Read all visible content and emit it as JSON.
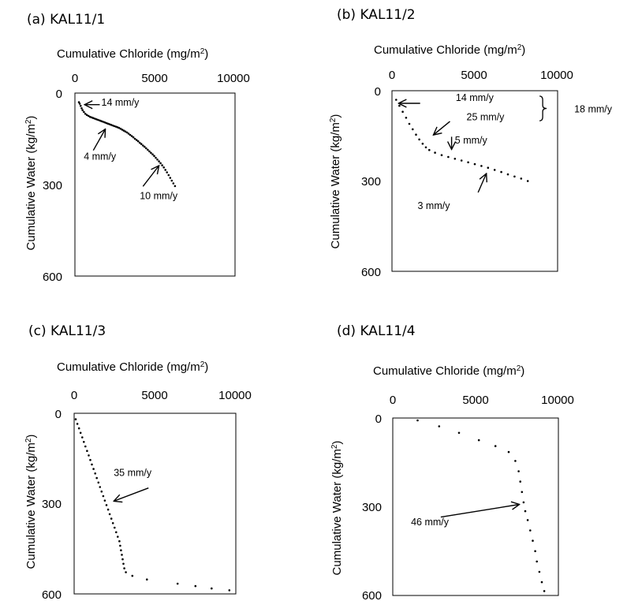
{
  "chart_data": [
    {
      "type": "scatter",
      "title": "(a) KAL11/1",
      "xlabel": "Cumulative Chloride (mg/m2)",
      "ylabel": "Cumulative Water (kg/m2)",
      "xlim": [
        0,
        10000
      ],
      "ylim": [
        0,
        600
      ],
      "y_inverted": true,
      "x_axis_position": "top",
      "xticks": [
        "0",
        "5000",
        "10000"
      ],
      "yticks": [
        "0",
        "300",
        "600"
      ],
      "grid": false,
      "points": [
        [
          250,
          30
        ],
        [
          300,
          35
        ],
        [
          360,
          42
        ],
        [
          420,
          50
        ],
        [
          480,
          56
        ],
        [
          560,
          62
        ],
        [
          650,
          68
        ],
        [
          750,
          72
        ],
        [
          850,
          75
        ],
        [
          950,
          78
        ],
        [
          1050,
          80
        ],
        [
          1150,
          82
        ],
        [
          1250,
          84
        ],
        [
          1350,
          86
        ],
        [
          1450,
          88
        ],
        [
          1550,
          90
        ],
        [
          1650,
          92
        ],
        [
          1750,
          94
        ],
        [
          1850,
          96
        ],
        [
          1950,
          98
        ],
        [
          2050,
          100
        ],
        [
          2150,
          102
        ],
        [
          2250,
          104
        ],
        [
          2350,
          106
        ],
        [
          2450,
          108
        ],
        [
          2550,
          110
        ],
        [
          2650,
          112
        ],
        [
          2750,
          114
        ],
        [
          2850,
          117
        ],
        [
          2950,
          120
        ],
        [
          3050,
          123
        ],
        [
          3150,
          126
        ],
        [
          3250,
          129
        ],
        [
          3350,
          133
        ],
        [
          3450,
          137
        ],
        [
          3550,
          141
        ],
        [
          3650,
          145
        ],
        [
          3750,
          150
        ],
        [
          3850,
          154
        ],
        [
          3950,
          158
        ],
        [
          4050,
          163
        ],
        [
          4150,
          167
        ],
        [
          4250,
          172
        ],
        [
          4350,
          176
        ],
        [
          4450,
          181
        ],
        [
          4550,
          186
        ],
        [
          4650,
          191
        ],
        [
          4750,
          196
        ],
        [
          4850,
          201
        ],
        [
          4950,
          206
        ],
        [
          5050,
          212
        ],
        [
          5150,
          218
        ],
        [
          5250,
          224
        ],
        [
          5350,
          230
        ],
        [
          5450,
          237
        ],
        [
          5550,
          244
        ],
        [
          5650,
          252
        ],
        [
          5750,
          260
        ],
        [
          5850,
          269
        ],
        [
          5950,
          278
        ],
        [
          6050,
          287
        ],
        [
          6150,
          296
        ],
        [
          6250,
          305
        ]
      ],
      "annotations": [
        {
          "text": "14  mm/y",
          "tx": 1650,
          "ty": 42,
          "arrow": [
            [
              1550,
              38
            ],
            [
              600,
              38
            ]
          ]
        },
        {
          "text": "4  mm/y",
          "tx": 550,
          "ty": 218,
          "arrow": [
            [
              1150,
              188
            ],
            [
              1900,
              118
            ]
          ]
        },
        {
          "text": "10 mm/y",
          "tx": 4050,
          "ty": 348,
          "arrow": [
            [
              4250,
              306
            ],
            [
              5250,
              238
            ]
          ]
        }
      ],
      "bracket": null
    },
    {
      "type": "scatter",
      "title": "(b) KAL11/2",
      "xlabel": "Cumulative Chloride (mg/m2)",
      "ylabel": "Cumulative Water (kg/m2)",
      "xlim": [
        0,
        10000
      ],
      "ylim": [
        0,
        600
      ],
      "y_inverted": true,
      "x_axis_position": "top",
      "xticks": [
        "0",
        "5000",
        "10000"
      ],
      "yticks": [
        "0",
        "300",
        "600"
      ],
      "grid": false,
      "points": [
        [
          250,
          30
        ],
        [
          450,
          50
        ],
        [
          650,
          70
        ],
        [
          850,
          90
        ],
        [
          1050,
          110
        ],
        [
          1250,
          128
        ],
        [
          1450,
          146
        ],
        [
          1650,
          162
        ],
        [
          1850,
          176
        ],
        [
          2050,
          188
        ],
        [
          2250,
          197
        ],
        [
          2600,
          206
        ],
        [
          3000,
          214
        ],
        [
          3400,
          220
        ],
        [
          3800,
          226
        ],
        [
          4200,
          232
        ],
        [
          4600,
          238
        ],
        [
          5000,
          244
        ],
        [
          5400,
          250
        ],
        [
          5800,
          256
        ],
        [
          6200,
          263
        ],
        [
          6600,
          270
        ],
        [
          7000,
          278
        ],
        [
          7400,
          285
        ],
        [
          7800,
          292
        ],
        [
          8200,
          300
        ]
      ],
      "annotations": [
        {
          "text": "14  mm/y",
          "tx": 3850,
          "ty": 34,
          "arrow": [
            [
              1700,
              42
            ],
            [
              400,
              42
            ]
          ]
        },
        {
          "text": "25  mm/y",
          "tx": 4500,
          "ty": 98,
          "arrow": [
            [
              3500,
              102
            ],
            [
              2500,
              147
            ]
          ]
        },
        {
          "text": "5 mm/y",
          "tx": 3800,
          "ty": 175,
          "arrow": [
            [
              3600,
              153
            ],
            [
              3600,
              195
            ]
          ]
        },
        {
          "text": "3  mm/y",
          "tx": 1550,
          "ty": 393,
          "arrow": [
            [
              5200,
              338
            ],
            [
              5700,
              275
            ]
          ]
        }
      ],
      "bracket": {
        "text": "18  mm/y",
        "x": 9100,
        "ty": 60,
        "y_from": 18,
        "y_to": 100
      }
    },
    {
      "type": "scatter",
      "title": "(c) KAL11/3",
      "xlabel": "Cumulative Chloride (mg/m2)",
      "ylabel": "Cumulative Water (kg/m2)",
      "xlim": [
        0,
        10000
      ],
      "ylim": [
        0,
        600
      ],
      "y_inverted": true,
      "x_axis_position": "top",
      "xticks": [
        "0",
        "5000",
        "10000"
      ],
      "yticks": [
        "0",
        "300",
        "600"
      ],
      "grid": false,
      "points": [
        [
          100,
          20
        ],
        [
          200,
          35
        ],
        [
          300,
          50
        ],
        [
          400,
          65
        ],
        [
          500,
          80
        ],
        [
          600,
          95
        ],
        [
          700,
          110
        ],
        [
          800,
          125
        ],
        [
          900,
          140
        ],
        [
          1000,
          155
        ],
        [
          1100,
          170
        ],
        [
          1200,
          185
        ],
        [
          1300,
          200
        ],
        [
          1400,
          215
        ],
        [
          1500,
          230
        ],
        [
          1600,
          245
        ],
        [
          1700,
          260
        ],
        [
          1800,
          275
        ],
        [
          1900,
          290
        ],
        [
          2000,
          305
        ],
        [
          2100,
          320
        ],
        [
          2200,
          335
        ],
        [
          2300,
          350
        ],
        [
          2400,
          365
        ],
        [
          2500,
          380
        ],
        [
          2600,
          395
        ],
        [
          2700,
          410
        ],
        [
          2800,
          425
        ],
        [
          2850,
          440
        ],
        [
          2900,
          455
        ],
        [
          2950,
          470
        ],
        [
          3000,
          485
        ],
        [
          3050,
          500
        ],
        [
          3100,
          515
        ],
        [
          3200,
          528
        ],
        [
          3600,
          540
        ],
        [
          4500,
          552
        ],
        [
          6400,
          566
        ],
        [
          7500,
          574
        ],
        [
          8500,
          582
        ],
        [
          9600,
          588
        ]
      ],
      "annotations": [
        {
          "text": "35  mm/y",
          "tx": 2450,
          "ty": 208,
          "arrow": [
            [
              4600,
              248
            ],
            [
              2450,
              292
            ]
          ]
        }
      ],
      "bracket": null
    },
    {
      "type": "scatter",
      "title": "(d) KAL11/4",
      "xlabel": "Cumulative Chloride (mg/m2)",
      "ylabel": "Cumulative Water (kg/m2)",
      "xlim": [
        0,
        10000
      ],
      "ylim": [
        0,
        600
      ],
      "y_inverted": true,
      "x_axis_position": "top",
      "xticks": [
        "0",
        "5000",
        "10000"
      ],
      "yticks": [
        "0",
        "300",
        "600"
      ],
      "grid": false,
      "points": [
        [
          1500,
          8
        ],
        [
          2800,
          28
        ],
        [
          4000,
          50
        ],
        [
          5200,
          75
        ],
        [
          6200,
          95
        ],
        [
          7000,
          115
        ],
        [
          7400,
          145
        ],
        [
          7600,
          180
        ],
        [
          7700,
          215
        ],
        [
          7800,
          250
        ],
        [
          7900,
          285
        ],
        [
          8000,
          315
        ],
        [
          8150,
          345
        ],
        [
          8300,
          380
        ],
        [
          8450,
          415
        ],
        [
          8600,
          450
        ],
        [
          8700,
          485
        ],
        [
          8850,
          520
        ],
        [
          9000,
          555
        ],
        [
          9150,
          585
        ]
      ],
      "annotations": [
        {
          "text": "46  mm/y",
          "tx": 1100,
          "ty": 362,
          "arrow": [
            [
              2900,
              335
            ],
            [
              7650,
              292
            ]
          ]
        }
      ],
      "bracket": null
    }
  ]
}
